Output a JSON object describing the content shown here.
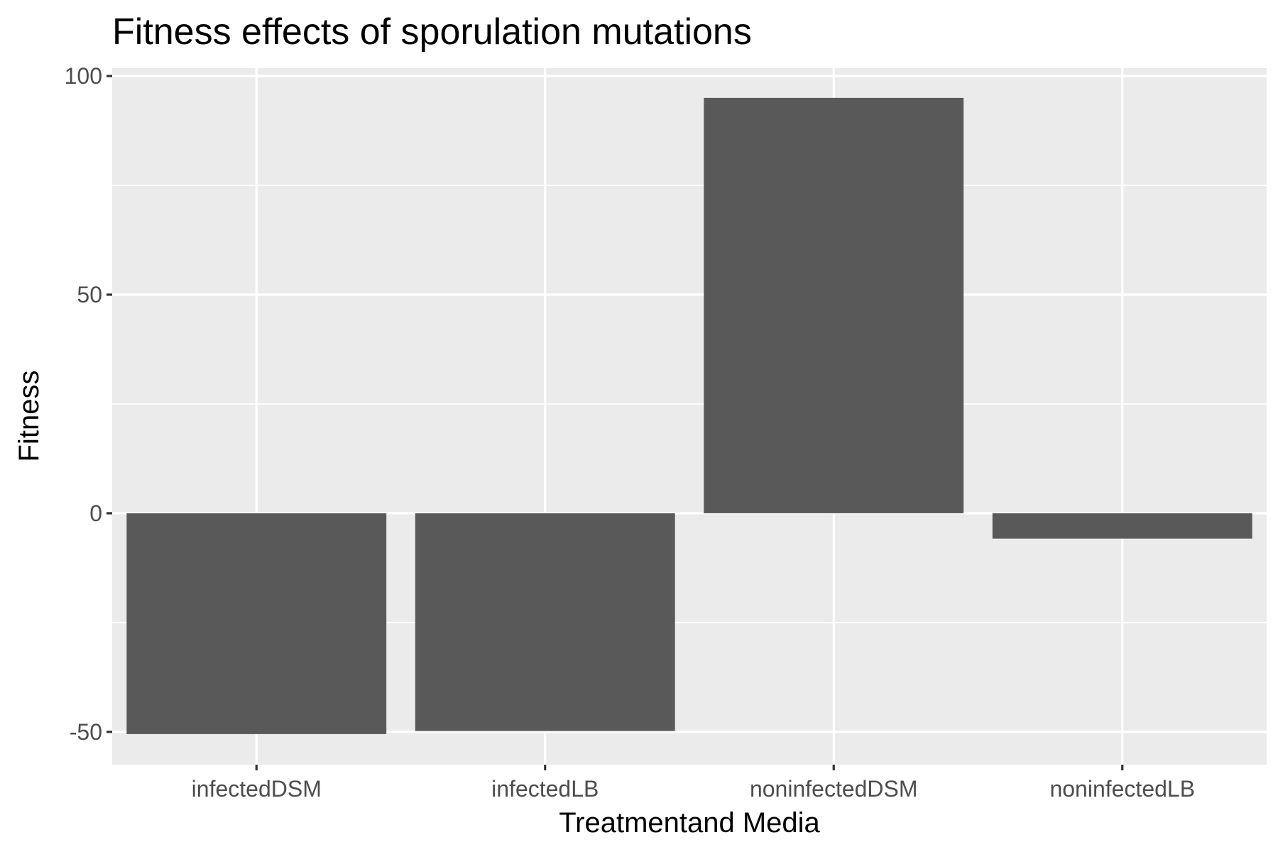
{
  "chart_data": {
    "type": "bar",
    "title": "Fitness effects of sporulation mutations",
    "xlabel": "Treatmentand Media",
    "ylabel": "Fitness",
    "categories": [
      "infectedDSM",
      "infectedLB",
      "noninfectedDSM",
      "noninfectedLB"
    ],
    "values": [
      -50.5,
      -49.8,
      95,
      -5.8
    ],
    "ylim": [
      -57.5,
      101.8
    ],
    "yticks": [
      -50,
      0,
      50,
      100
    ],
    "ytick_labels": [
      "-50",
      "0",
      "50",
      "100"
    ],
    "y_minor_ticks": [
      -25,
      25,
      75
    ],
    "grid": true,
    "legend": "none",
    "colors": {
      "bar": "#595959",
      "panel": "#ebebeb",
      "grid": "#ffffff",
      "tick_label": "#4d4d4d",
      "tick": "#333333"
    }
  }
}
